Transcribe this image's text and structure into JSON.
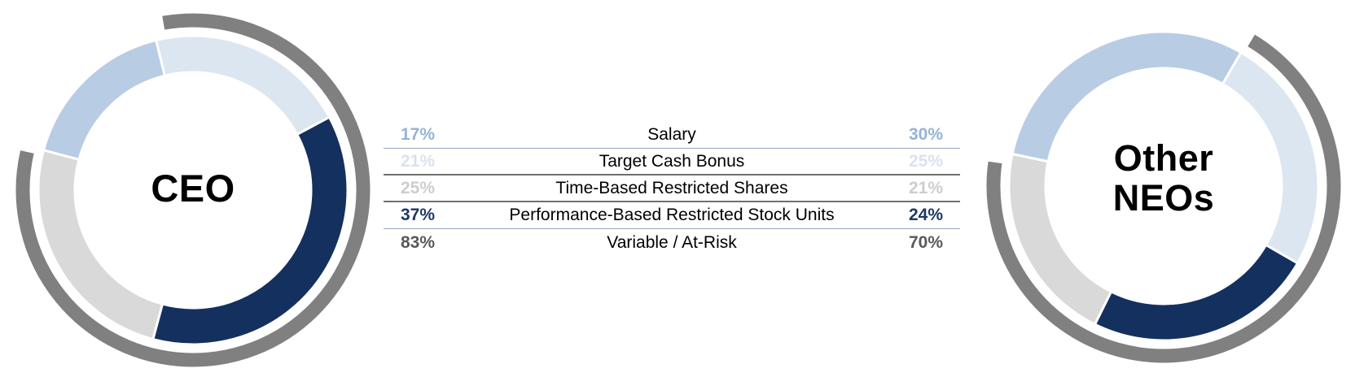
{
  "colors": {
    "salary": "#b8cce4",
    "target_cash_bonus": "#dce6f1",
    "time_based_restricted_shares": "#d9d9d9",
    "performance_rsu": "#14305f",
    "at_risk_arc": "#808080",
    "value_text_salary": "#95b3d7",
    "value_text_bonus": "#d8e2f1",
    "value_text_time": "#cdcdcd",
    "value_text_perf": "#1f3864",
    "value_text_at_risk": "#595959",
    "label_text": "#000000",
    "divider_thin": "#98a4ba",
    "divider_thick": "#6f6f6f",
    "segment_gap": "#ffffff"
  },
  "chart_data": [
    {
      "type": "donut",
      "title": "CEO",
      "center_label": "CEO",
      "center_label_lines": [
        "CEO"
      ],
      "start_deg": 285,
      "segments": [
        {
          "label": "Salary",
          "value_pct": 17,
          "color": "salary"
        },
        {
          "label": "Target Cash Bonus",
          "value_pct": 21,
          "color": "target_cash_bonus"
        },
        {
          "label": "Performance-Based Restricted Stock Units",
          "value_pct": 37,
          "color": "performance_rsu"
        },
        {
          "label": "Time-Based Restricted Shares",
          "value_pct": 25,
          "color": "time_based_restricted_shares"
        }
      ],
      "outer_arc": {
        "label": "Variable / At-Risk",
        "value_pct": 83,
        "start_deg": 350,
        "sweep_deg": 293,
        "color": "at_risk_arc"
      }
    },
    {
      "type": "donut",
      "title": "Other NEOs",
      "center_label": "Other NEOs",
      "center_label_lines": [
        "Other",
        "NEOs"
      ],
      "start_deg": 282,
      "segments": [
        {
          "label": "Salary",
          "value_pct": 30,
          "color": "salary"
        },
        {
          "label": "Target Cash Bonus",
          "value_pct": 25,
          "color": "target_cash_bonus"
        },
        {
          "label": "Performance-Based Restricted Stock Units",
          "value_pct": 24,
          "color": "performance_rsu"
        },
        {
          "label": "Time-Based Restricted Shares",
          "value_pct": 21,
          "color": "time_based_restricted_shares"
        }
      ],
      "outer_arc": {
        "label": "Variable / At-Risk",
        "value_pct": 70,
        "start_deg": 31,
        "sweep_deg": 247,
        "color": "at_risk_arc"
      }
    }
  ],
  "comparison_table": {
    "rows": [
      {
        "ceo": "17%",
        "label": "Salary",
        "neo": "30%",
        "value_color": "value_text_salary",
        "divider": "thin"
      },
      {
        "ceo": "21%",
        "label": "Target Cash Bonus",
        "neo": "25%",
        "value_color": "value_text_bonus",
        "divider": "thick"
      },
      {
        "ceo": "25%",
        "label": "Time-Based Restricted Shares",
        "neo": "21%",
        "value_color": "value_text_time",
        "divider": "thick"
      },
      {
        "ceo": "37%",
        "label": "Performance-Based Restricted Stock Units",
        "neo": "24%",
        "value_color": "value_text_perf",
        "divider": "thin"
      },
      {
        "ceo": "83%",
        "label": "Variable / At-Risk",
        "neo": "70%",
        "value_color": "value_text_at_risk",
        "divider": null
      }
    ]
  }
}
